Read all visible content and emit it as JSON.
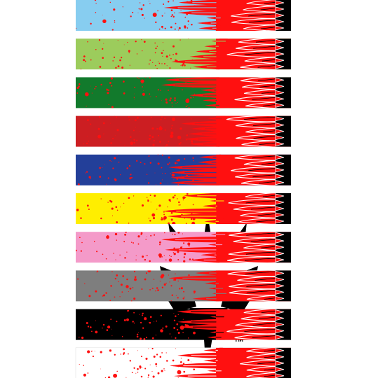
{
  "watermark": {
    "mark": "TM"
  },
  "strips": [
    {
      "color": "#87cdf0"
    },
    {
      "color": "#9ccc5c"
    },
    {
      "color": "#127a2c"
    },
    {
      "color": "#cc1e22"
    },
    {
      "color": "#233f99"
    },
    {
      "color": "#ffee00"
    },
    {
      "color": "#f49ac9"
    },
    {
      "color": "#7e7e7e"
    },
    {
      "color": "#000000"
    },
    {
      "color": "#ffffff"
    }
  ],
  "flame_color": "#ff1010",
  "splatter_color": "#ff1010",
  "outline_color": "#ffffff",
  "end_cap_color": "#000000"
}
